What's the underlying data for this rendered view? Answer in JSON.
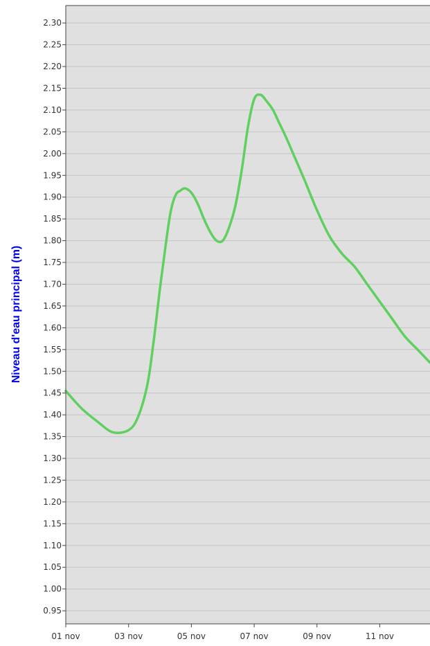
{
  "chart_data": {
    "type": "line",
    "title": "",
    "xlabel": "",
    "ylabel": "Niveau d'eau principal (m)",
    "x_ticks": [
      "01 nov",
      "03 nov",
      "05 nov",
      "07 nov",
      "09 nov",
      "11 nov"
    ],
    "x_range_days": [
      1,
      12.6
    ],
    "y_ticks": [
      "0.95",
      "1.00",
      "1.05",
      "1.10",
      "1.15",
      "1.20",
      "1.25",
      "1.30",
      "1.35",
      "1.40",
      "1.45",
      "1.50",
      "1.55",
      "1.60",
      "1.65",
      "1.70",
      "1.75",
      "1.80",
      "1.85",
      "1.90",
      "1.95",
      "2.00",
      "2.05",
      "2.10",
      "2.15",
      "2.20",
      "2.25",
      "2.30"
    ],
    "ylim": [
      0.92,
      2.34
    ],
    "grid": true,
    "colors": {
      "plot_background": "#e0e0e0",
      "grid": "#c4c4c4",
      "series": "#5fcf5f",
      "axis": "#333333",
      "ylabel": "#0000ee"
    },
    "series": [
      {
        "name": "",
        "x": [
          1.0,
          1.5,
          2.0,
          2.5,
          3.0,
          3.3,
          3.6,
          3.8,
          4.0,
          4.2,
          4.35,
          4.5,
          4.65,
          4.8,
          5.0,
          5.2,
          5.4,
          5.6,
          5.8,
          6.0,
          6.2,
          6.4,
          6.6,
          6.8,
          7.0,
          7.2,
          7.4,
          7.6,
          7.8,
          8.0,
          8.3,
          8.6,
          9.0,
          9.4,
          9.8,
          10.2,
          10.6,
          11.0,
          11.4,
          11.8,
          12.2,
          12.6
        ],
        "y": [
          1.455,
          1.415,
          1.385,
          1.36,
          1.365,
          1.395,
          1.47,
          1.57,
          1.69,
          1.8,
          1.87,
          1.905,
          1.915,
          1.92,
          1.91,
          1.885,
          1.85,
          1.82,
          1.8,
          1.8,
          1.83,
          1.88,
          1.96,
          2.06,
          2.125,
          2.135,
          2.12,
          2.1,
          2.07,
          2.04,
          1.99,
          1.94,
          1.87,
          1.81,
          1.77,
          1.74,
          1.7,
          1.66,
          1.62,
          1.58,
          1.55,
          1.52
        ]
      }
    ]
  }
}
